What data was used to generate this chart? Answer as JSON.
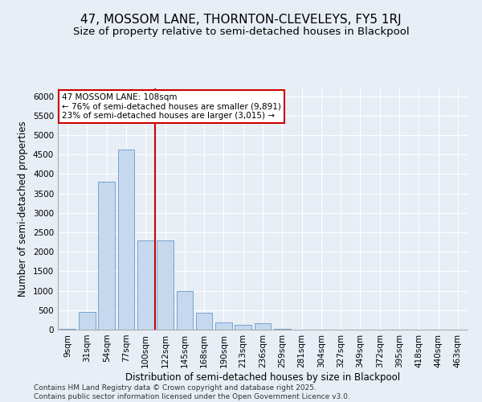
{
  "title1": "47, MOSSOM LANE, THORNTON-CLEVELEYS, FY5 1RJ",
  "title2": "Size of property relative to semi-detached houses in Blackpool",
  "xlabel": "Distribution of semi-detached houses by size in Blackpool",
  "ylabel": "Number of semi-detached properties",
  "categories": [
    "9sqm",
    "31sqm",
    "54sqm",
    "77sqm",
    "100sqm",
    "122sqm",
    "145sqm",
    "168sqm",
    "190sqm",
    "213sqm",
    "236sqm",
    "259sqm",
    "281sqm",
    "304sqm",
    "327sqm",
    "349sqm",
    "372sqm",
    "395sqm",
    "418sqm",
    "440sqm",
    "463sqm"
  ],
  "values": [
    20,
    460,
    3800,
    4620,
    2300,
    2300,
    1000,
    430,
    190,
    120,
    160,
    30,
    0,
    0,
    0,
    0,
    0,
    0,
    0,
    0,
    0
  ],
  "bar_color": "#c5d8ee",
  "bar_edge_color": "#6699cc",
  "vline_color": "#cc0000",
  "vline_position": 4.5,
  "ylim_max": 6200,
  "ytick_step": 500,
  "annotation_title": "47 MOSSOM LANE: 108sqm",
  "annotation_line1": "← 76% of semi-detached houses are smaller (9,891)",
  "annotation_line2": "23% of semi-detached houses are larger (3,015) →",
  "annotation_box_facecolor": "#ffffff",
  "annotation_box_edgecolor": "#cc0000",
  "bg_color": "#e8eef5",
  "grid_color": "#ffffff",
  "title1_fontsize": 11,
  "title2_fontsize": 9.5,
  "axis_label_fontsize": 8.5,
  "tick_fontsize": 7.5,
  "footer_fontsize": 6.5,
  "footer": "Contains HM Land Registry data © Crown copyright and database right 2025.\nContains public sector information licensed under the Open Government Licence v3.0."
}
